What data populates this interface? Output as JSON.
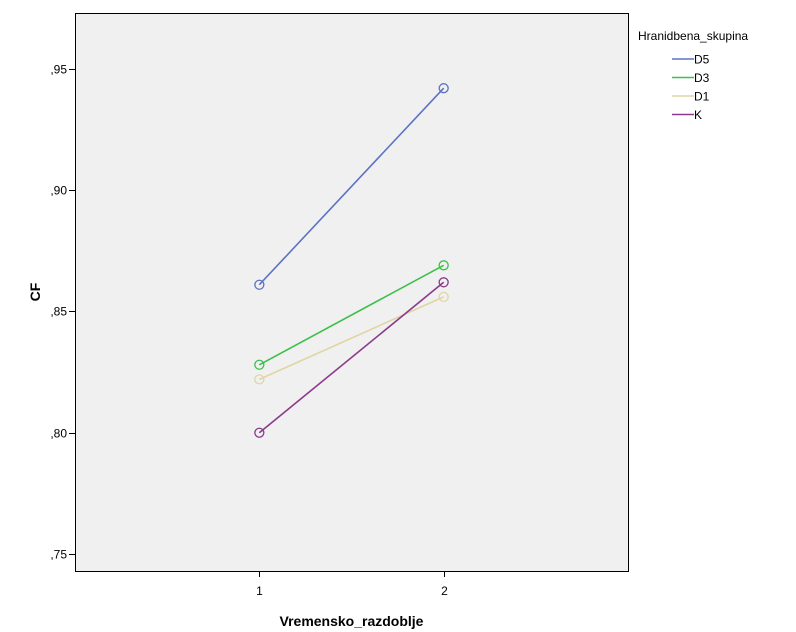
{
  "chart_data": {
    "type": "line",
    "xlabel": "Vremensko_razdoblje",
    "ylabel": "CF",
    "categories": [
      "1",
      "2"
    ],
    "ylim": [
      0.743,
      0.973
    ],
    "yticks": [
      0.75,
      0.8,
      0.85,
      0.9,
      0.95
    ],
    "ytick_labels": [
      ",75",
      ",80",
      ",85",
      ",90",
      ",95"
    ],
    "xlim": [
      0.0,
      3.0
    ],
    "grid": false,
    "legend": {
      "title": "Hranidbena_skupina",
      "placement": "top-right outside plot"
    },
    "series": [
      {
        "name": "D5",
        "color": "#5b73c4",
        "values": [
          0.861,
          0.942
        ]
      },
      {
        "name": "D3",
        "color": "#3cc04a",
        "values": [
          0.828,
          0.869
        ]
      },
      {
        "name": "D1",
        "color": "#e0d5a3",
        "values": [
          0.822,
          0.856
        ]
      },
      {
        "name": "K",
        "color": "#8c3a8c",
        "values": [
          0.8,
          0.862
        ]
      }
    ]
  }
}
